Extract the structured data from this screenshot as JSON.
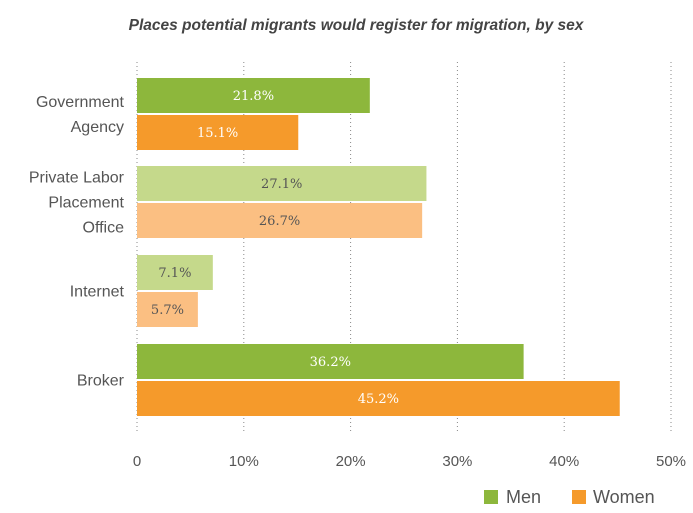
{
  "chart_data": {
    "type": "bar",
    "orientation": "horizontal",
    "title": "Places potential migrants would register for migration, by sex",
    "categories": [
      [
        "Government",
        "Agency"
      ],
      [
        "Private Labor",
        "Placement",
        "Office"
      ],
      [
        "Internet"
      ],
      [
        "Broker"
      ]
    ],
    "series": [
      {
        "name": "Men",
        "values": [
          21.8,
          27.1,
          7.1,
          36.2
        ],
        "labels": [
          "21.8%",
          "27.1%",
          "7.1%",
          "36.2%"
        ],
        "colors": [
          "#8db73c",
          "#c5d98b",
          "#c5d98b",
          "#8db73c"
        ]
      },
      {
        "name": "Women",
        "values": [
          15.1,
          26.7,
          5.7,
          45.2
        ],
        "labels": [
          "15.1%",
          "26.7%",
          "5.7%",
          "45.2%"
        ],
        "colors": [
          "#f59a2b",
          "#fbbf82",
          "#fbbf82",
          "#f59a2b"
        ]
      }
    ],
    "label_colors": [
      "#ffffff",
      "#555555",
      "#555555",
      "#ffffff"
    ],
    "xlim": [
      0,
      50
    ],
    "ticks": [
      "0",
      "10%",
      "20%",
      "30%",
      "40%",
      "50%"
    ],
    "tick_values": [
      0,
      10,
      20,
      30,
      40,
      50
    ],
    "grid": "vertical dashed",
    "legend": {
      "position": "bottom-right",
      "items": [
        {
          "name": "Men",
          "color": "#8db73c"
        },
        {
          "name": "Women",
          "color": "#f59a2b"
        }
      ]
    },
    "colors": {
      "title": "#444444",
      "text": "#555555",
      "grid": "#888888"
    }
  }
}
